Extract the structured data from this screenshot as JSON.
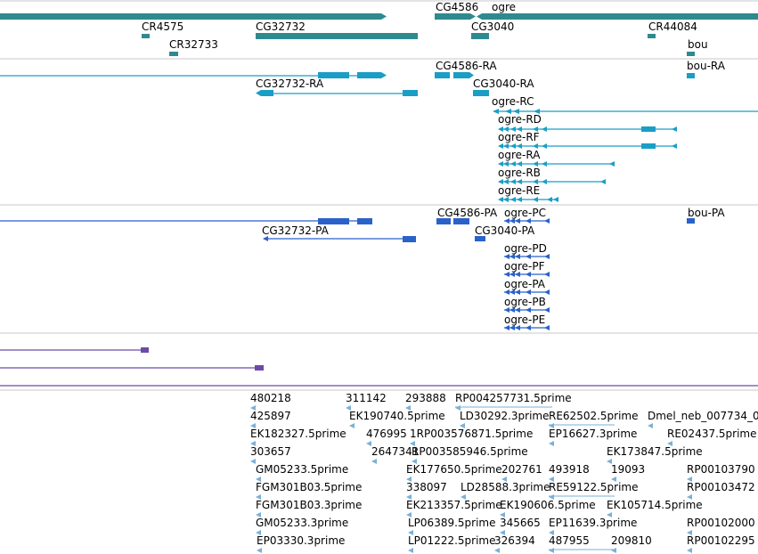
{
  "colors": {
    "gene": "#2f8a8f",
    "transcript": "#1a9ec6",
    "protein": "#2a62c9",
    "purple": "#6d4aa8",
    "est": "#7ab0d8",
    "divider": "#c8c8c8"
  },
  "genes": {
    "labels": [
      "CG4586",
      "ogre",
      "CR4575",
      "CG32732",
      "CG3040",
      "CR44084",
      "CR32733",
      "bou"
    ]
  },
  "transcripts": {
    "labels": [
      "CG4586-RA",
      "bou-RA",
      "CG32732-RA",
      "CG3040-RA",
      "ogre-RC",
      "ogre-RD",
      "ogre-RF",
      "ogre-RA",
      "ogre-RB",
      "ogre-RE"
    ]
  },
  "proteins": {
    "labels": [
      "CG4586-PA",
      "ogre-PC",
      "bou-PA",
      "CG32732-PA",
      "CG3040-PA",
      "ogre-PD",
      "ogre-PF",
      "ogre-PA",
      "ogre-PB",
      "ogre-PE"
    ]
  },
  "ests": {
    "labels": [
      "480218",
      "311142",
      "293888",
      "RP004257731.5prime",
      "425897",
      "EK190740.5prime",
      "LD30292.3prime",
      "RE62502.5prime",
      "Dmel_neb_007734_0",
      "EK182327.5prime",
      "476995",
      "1RP003576871.5prime",
      "EP16627.3prime",
      "RE02437.5prime",
      "303657",
      "2647341",
      "RP003585946.5prime",
      "EK173847.5prime",
      "GM05233.5prime",
      "EK177650.5prime",
      "202761",
      "493918",
      "19093",
      "RP00103790",
      "FGM301B03.5prime",
      "338097",
      "LD28588.3prime",
      "RE59122.5prime",
      "RP00103472",
      "FGM301B03.3prime",
      "EK213357.5prime",
      "EK190606.5prime",
      "EK105714.5prime",
      "GM05233.3prime",
      "LP06389.5prime",
      "345665",
      "EP11639.3prime",
      "RP00102000",
      "EP03330.3prime",
      "LP01222.5prime",
      "326394",
      "487955",
      "209810",
      "RP00102295"
    ]
  }
}
